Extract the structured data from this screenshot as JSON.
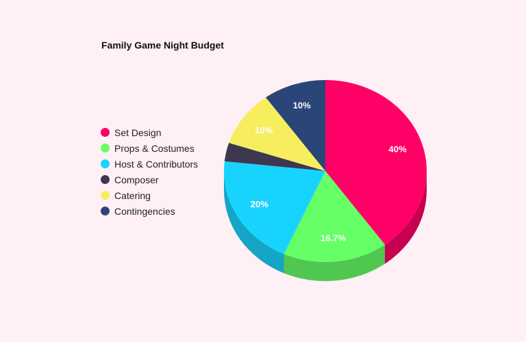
{
  "chart_data": {
    "type": "pie",
    "title": "Family Game Night Budget",
    "legend_position": "left",
    "slices": [
      {
        "name": "Set Design",
        "value": 40,
        "label": "40%",
        "color": "#ff0066"
      },
      {
        "name": "Props & Costumes",
        "value": 16.7,
        "label": "16.7%",
        "color": "#66ff66"
      },
      {
        "name": "Host & Contributors",
        "value": 20,
        "label": "20%",
        "color": "#19d3ff"
      },
      {
        "name": "Composer",
        "value": 3.3,
        "label": "",
        "color": "#3d3850"
      },
      {
        "name": "Catering",
        "value": 10,
        "label": "10%",
        "color": "#f7ee5f"
      },
      {
        "name": "Contingencies",
        "value": 10,
        "label": "10%",
        "color": "#2a4578"
      }
    ]
  }
}
